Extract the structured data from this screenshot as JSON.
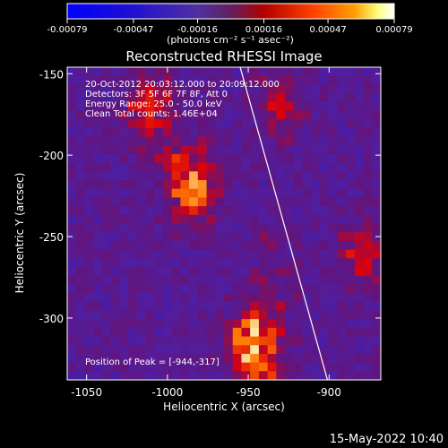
{
  "chart_data": {
    "type": "heatmap",
    "title": "Reconstructed RHESSI Image",
    "xlabel": "Heliocentric X (arcsec)",
    "ylabel": "Heliocentric Y (arcsec)",
    "xlim": [
      -1062,
      -868
    ],
    "ylim": [
      -338,
      -146
    ],
    "x_ticks": [
      "-1050",
      "-1000",
      "-950",
      "-900"
    ],
    "x_tick_values": [
      -1050,
      -1000,
      -950,
      -900
    ],
    "y_ticks": [
      "-150",
      "-200",
      "-250",
      "-300"
    ],
    "y_tick_values": [
      -150,
      -200,
      -250,
      -300
    ],
    "colorbar": {
      "ticks": [
        "-0.00079",
        "-0.00047",
        "-0.00016",
        "0.00016",
        "0.00047",
        "0.00079"
      ],
      "tick_values": [
        -0.00079,
        -0.00047,
        -0.00016,
        0.00016,
        0.00047,
        0.00079
      ],
      "range": [
        -0.00079,
        0.00079
      ],
      "unit_label": "(photons cm⁻² s⁻¹ asec⁻²)"
    },
    "annotations": {
      "time": "20-Oct-2012 20:03:12.000 to 20:09:12.000",
      "detectors": "Detectors: 3F 5F 6F 7F 8F, Att 0",
      "energy": "Energy Range: 25.0 - 50.0 keV",
      "clean": "Clean    Total counts: 1.46E+04",
      "peak": "Position of Peak = [-944,-317]"
    },
    "limb_line": {
      "x_start": -955,
      "y_start": -146,
      "x_end": -901,
      "y_end": -338
    },
    "bright_regions": [
      {
        "x": -985,
        "y": -218,
        "intensity": 0.00079
      },
      {
        "x": -948,
        "y": -318,
        "intensity": 0.00079
      },
      {
        "x": -1010,
        "y": -175,
        "intensity": 0.0005
      },
      {
        "x": -930,
        "y": -170,
        "intensity": 0.00035
      },
      {
        "x": -878,
        "y": -260,
        "intensity": 0.00045
      }
    ],
    "colors": {
      "neg_low": "#0000ff",
      "neg_mid": "#4020c0",
      "neutral_purple": "#5530a0",
      "mid_red": "#c00000",
      "high_orange": "#ff8000",
      "peak": "#ffffff"
    }
  },
  "footer": {
    "date": "15-May-2022 10:40"
  }
}
